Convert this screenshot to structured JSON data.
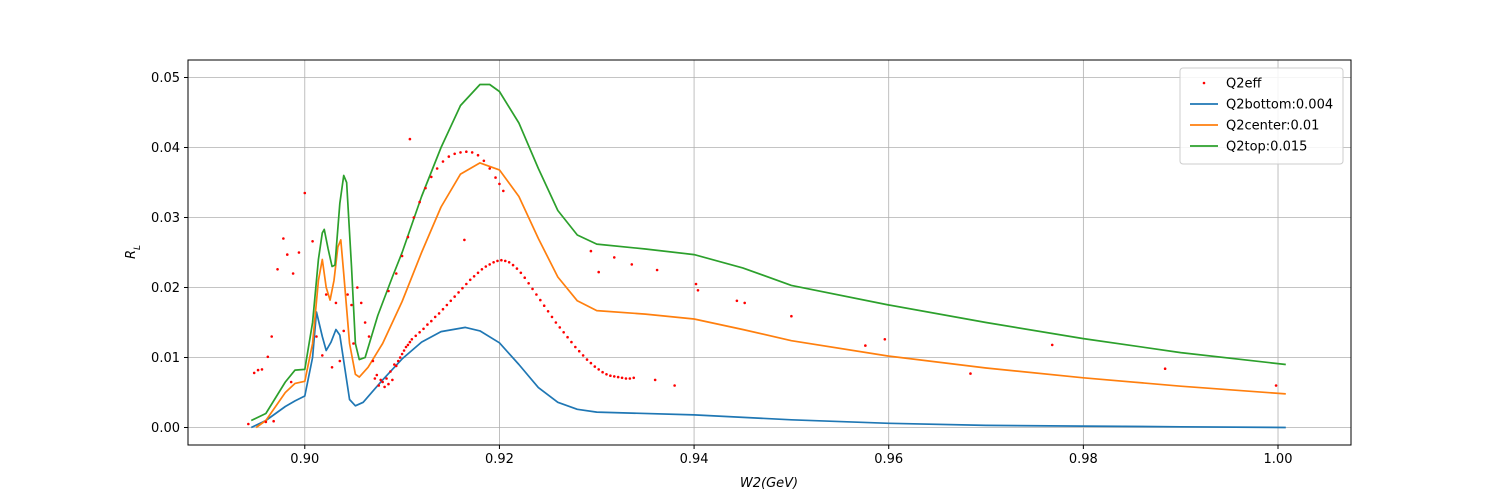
{
  "chart_data": {
    "type": "line",
    "title": "",
    "xlabel": "W2(GeV)",
    "ylabel": "R_L",
    "xlim": [
      0.888,
      1.0075
    ],
    "ylim": [
      -0.0025,
      0.0525
    ],
    "xticks": [
      0.9,
      0.92,
      0.94,
      0.96,
      0.98,
      1.0
    ],
    "xtick_labels": [
      "0.90",
      "0.92",
      "0.94",
      "0.96",
      "0.98",
      "1.00"
    ],
    "yticks": [
      0.0,
      0.01,
      0.02,
      0.03,
      0.04,
      0.05
    ],
    "ytick_labels": [
      "0.00",
      "0.01",
      "0.02",
      "0.03",
      "0.04",
      "0.05"
    ],
    "grid": true,
    "legend_position": "top-right",
    "series": [
      {
        "name": "Q2eff",
        "kind": "scatter",
        "color": "#ff0000",
        "points": [
          [
            0.8942,
            0.0005
          ],
          [
            0.8948,
            0.0078
          ],
          [
            0.8952,
            0.0082
          ],
          [
            0.8956,
            0.0083
          ],
          [
            0.896,
            0.0008
          ],
          [
            0.8962,
            0.0101
          ],
          [
            0.8966,
            0.013
          ],
          [
            0.8968,
            0.0009
          ],
          [
            0.8972,
            0.0226
          ],
          [
            0.8978,
            0.027
          ],
          [
            0.8982,
            0.0247
          ],
          [
            0.8986,
            0.0065
          ],
          [
            0.8988,
            0.022
          ],
          [
            0.8994,
            0.025
          ],
          [
            0.9,
            0.0335
          ],
          [
            0.9008,
            0.0266
          ],
          [
            0.9012,
            0.013
          ],
          [
            0.9018,
            0.0103
          ],
          [
            0.9022,
            0.019
          ],
          [
            0.9028,
            0.0086
          ],
          [
            0.9032,
            0.0178
          ],
          [
            0.9036,
            0.0095
          ],
          [
            0.904,
            0.0138
          ],
          [
            0.9044,
            0.019
          ],
          [
            0.9048,
            0.0175
          ],
          [
            0.905,
            0.012
          ],
          [
            0.9054,
            0.02
          ],
          [
            0.9058,
            0.0178
          ],
          [
            0.9062,
            0.015
          ],
          [
            0.9066,
            0.013
          ],
          [
            0.907,
            0.0095
          ],
          [
            0.9072,
            0.007
          ],
          [
            0.9074,
            0.0075
          ],
          [
            0.9076,
            0.006
          ],
          [
            0.9078,
            0.0068
          ],
          [
            0.908,
            0.0065
          ],
          [
            0.9082,
            0.0058
          ],
          [
            0.9084,
            0.007
          ],
          [
            0.9086,
            0.0062
          ],
          [
            0.9088,
            0.008
          ],
          [
            0.909,
            0.0068
          ],
          [
            0.9092,
            0.009
          ],
          [
            0.9094,
            0.0088
          ],
          [
            0.9096,
            0.0095
          ],
          [
            0.9098,
            0.01
          ],
          [
            0.91,
            0.0105
          ],
          [
            0.9102,
            0.011
          ],
          [
            0.9104,
            0.0115
          ],
          [
            0.9106,
            0.0118
          ],
          [
            0.9108,
            0.0122
          ],
          [
            0.911,
            0.0126
          ],
          [
            0.9114,
            0.0131
          ],
          [
            0.9118,
            0.0136
          ],
          [
            0.9122,
            0.0141
          ],
          [
            0.9126,
            0.0147
          ],
          [
            0.913,
            0.0152
          ],
          [
            0.9134,
            0.0158
          ],
          [
            0.9138,
            0.0163
          ],
          [
            0.9142,
            0.0169
          ],
          [
            0.9146,
            0.0175
          ],
          [
            0.915,
            0.0181
          ],
          [
            0.9154,
            0.0187
          ],
          [
            0.9158,
            0.0193
          ],
          [
            0.9162,
            0.0199
          ],
          [
            0.9166,
            0.0205
          ],
          [
            0.917,
            0.0211
          ],
          [
            0.9174,
            0.0216
          ],
          [
            0.9178,
            0.0221
          ],
          [
            0.9182,
            0.0226
          ],
          [
            0.9186,
            0.023
          ],
          [
            0.919,
            0.0233
          ],
          [
            0.9194,
            0.0236
          ],
          [
            0.9198,
            0.0238
          ],
          [
            0.9202,
            0.0239
          ],
          [
            0.9206,
            0.0238
          ],
          [
            0.921,
            0.0236
          ],
          [
            0.9214,
            0.0232
          ],
          [
            0.9218,
            0.0227
          ],
          [
            0.9222,
            0.0221
          ],
          [
            0.9226,
            0.0214
          ],
          [
            0.923,
            0.0206
          ],
          [
            0.9234,
            0.0198
          ],
          [
            0.9238,
            0.019
          ],
          [
            0.9242,
            0.0182
          ],
          [
            0.9246,
            0.0174
          ],
          [
            0.925,
            0.0166
          ],
          [
            0.9254,
            0.0158
          ],
          [
            0.9258,
            0.015
          ],
          [
            0.9262,
            0.0143
          ],
          [
            0.9266,
            0.0136
          ],
          [
            0.927,
            0.0129
          ],
          [
            0.9274,
            0.0122
          ],
          [
            0.9278,
            0.0115
          ],
          [
            0.9282,
            0.0109
          ],
          [
            0.9286,
            0.0103
          ],
          [
            0.929,
            0.0097
          ],
          [
            0.9294,
            0.0092
          ],
          [
            0.9298,
            0.0087
          ],
          [
            0.9302,
            0.0083
          ],
          [
            0.9306,
            0.0079
          ],
          [
            0.931,
            0.0076
          ],
          [
            0.9314,
            0.0074
          ],
          [
            0.9318,
            0.0073
          ],
          [
            0.9322,
            0.0072
          ],
          [
            0.9326,
            0.0071
          ],
          [
            0.933,
            0.007
          ],
          [
            0.9334,
            0.007
          ],
          [
            0.9338,
            0.0071
          ],
          [
            0.9086,
            0.0195
          ],
          [
            0.9094,
            0.022
          ],
          [
            0.91,
            0.0245
          ],
          [
            0.9106,
            0.0272
          ],
          [
            0.9112,
            0.03
          ],
          [
            0.9118,
            0.0322
          ],
          [
            0.9124,
            0.0342
          ],
          [
            0.913,
            0.0358
          ],
          [
            0.9136,
            0.037
          ],
          [
            0.9142,
            0.038
          ],
          [
            0.9148,
            0.0387
          ],
          [
            0.9154,
            0.0391
          ],
          [
            0.916,
            0.0393
          ],
          [
            0.9166,
            0.0394
          ],
          [
            0.9172,
            0.0393
          ],
          [
            0.9178,
            0.0389
          ],
          [
            0.9184,
            0.0381
          ],
          [
            0.919,
            0.037
          ],
          [
            0.9196,
            0.0357
          ],
          [
            0.92,
            0.0348
          ],
          [
            0.9204,
            0.0338
          ],
          [
            0.9108,
            0.0412
          ],
          [
            0.9164,
            0.0268
          ],
          [
            0.9294,
            0.0252
          ],
          [
            0.9302,
            0.0222
          ],
          [
            0.9318,
            0.0243
          ],
          [
            0.9336,
            0.0233
          ],
          [
            0.9362,
            0.0225
          ],
          [
            0.936,
            0.0068
          ],
          [
            0.938,
            0.006
          ],
          [
            0.9402,
            0.0205
          ],
          [
            0.9404,
            0.0196
          ],
          [
            0.9444,
            0.0181
          ],
          [
            0.9452,
            0.0178
          ],
          [
            0.95,
            0.0159
          ],
          [
            0.9576,
            0.0117
          ],
          [
            0.9596,
            0.0126
          ],
          [
            0.9684,
            0.0077
          ],
          [
            0.9768,
            0.0118
          ],
          [
            0.9884,
            0.0084
          ],
          [
            0.9998,
            0.006
          ]
        ]
      },
      {
        "name": "Q2bottom:0.004",
        "kind": "line",
        "color": "#1f77b4",
        "points": [
          [
            0.8945,
            0.0
          ],
          [
            0.896,
            0.001
          ],
          [
            0.898,
            0.003
          ],
          [
            0.899,
            0.0038
          ],
          [
            0.9,
            0.0045
          ],
          [
            0.9008,
            0.01
          ],
          [
            0.9012,
            0.0165
          ],
          [
            0.9018,
            0.013
          ],
          [
            0.9022,
            0.011
          ],
          [
            0.9027,
            0.0122
          ],
          [
            0.9032,
            0.014
          ],
          [
            0.9036,
            0.0132
          ],
          [
            0.904,
            0.0095
          ],
          [
            0.9046,
            0.004
          ],
          [
            0.9052,
            0.0031
          ],
          [
            0.906,
            0.0036
          ],
          [
            0.907,
            0.0052
          ],
          [
            0.908,
            0.0068
          ],
          [
            0.91,
            0.0098
          ],
          [
            0.912,
            0.0122
          ],
          [
            0.914,
            0.0137
          ],
          [
            0.9165,
            0.0143
          ],
          [
            0.918,
            0.0138
          ],
          [
            0.92,
            0.0121
          ],
          [
            0.922,
            0.009
          ],
          [
            0.924,
            0.0057
          ],
          [
            0.926,
            0.0036
          ],
          [
            0.928,
            0.0026
          ],
          [
            0.93,
            0.0022
          ],
          [
            0.94,
            0.0018
          ],
          [
            0.95,
            0.0011
          ],
          [
            0.96,
            0.0006
          ],
          [
            0.97,
            0.0003
          ],
          [
            0.98,
            0.0002
          ],
          [
            0.99,
            0.0001
          ],
          [
            1.0008,
            0.0
          ]
        ]
      },
      {
        "name": "Q2center:0.01",
        "kind": "line",
        "color": "#ff7f0e",
        "points": [
          [
            0.895,
            0.0
          ],
          [
            0.896,
            0.001
          ],
          [
            0.898,
            0.005
          ],
          [
            0.899,
            0.0063
          ],
          [
            0.9,
            0.0066
          ],
          [
            0.9008,
            0.012
          ],
          [
            0.9014,
            0.021
          ],
          [
            0.9018,
            0.024
          ],
          [
            0.9022,
            0.02
          ],
          [
            0.9026,
            0.0182
          ],
          [
            0.903,
            0.021
          ],
          [
            0.9034,
            0.0258
          ],
          [
            0.9037,
            0.0268
          ],
          [
            0.904,
            0.022
          ],
          [
            0.9046,
            0.012
          ],
          [
            0.9052,
            0.0076
          ],
          [
            0.9056,
            0.0072
          ],
          [
            0.9065,
            0.0086
          ],
          [
            0.908,
            0.012
          ],
          [
            0.91,
            0.018
          ],
          [
            0.912,
            0.025
          ],
          [
            0.914,
            0.0315
          ],
          [
            0.916,
            0.0362
          ],
          [
            0.918,
            0.0378
          ],
          [
            0.92,
            0.0368
          ],
          [
            0.922,
            0.033
          ],
          [
            0.924,
            0.027
          ],
          [
            0.926,
            0.0215
          ],
          [
            0.928,
            0.0181
          ],
          [
            0.93,
            0.0167
          ],
          [
            0.935,
            0.0162
          ],
          [
            0.94,
            0.0155
          ],
          [
            0.945,
            0.014
          ],
          [
            0.95,
            0.0124
          ],
          [
            0.96,
            0.0102
          ],
          [
            0.97,
            0.0085
          ],
          [
            0.98,
            0.0071
          ],
          [
            0.99,
            0.0059
          ],
          [
            1.0008,
            0.0048
          ]
        ]
      },
      {
        "name": "Q2top:0.015",
        "kind": "line",
        "color": "#2ca02c",
        "points": [
          [
            0.8945,
            0.001
          ],
          [
            0.896,
            0.002
          ],
          [
            0.898,
            0.0065
          ],
          [
            0.899,
            0.0082
          ],
          [
            0.9,
            0.0083
          ],
          [
            0.9008,
            0.015
          ],
          [
            0.9014,
            0.024
          ],
          [
            0.9018,
            0.0278
          ],
          [
            0.902,
            0.0283
          ],
          [
            0.9024,
            0.0255
          ],
          [
            0.9028,
            0.023
          ],
          [
            0.9031,
            0.0232
          ],
          [
            0.9036,
            0.032
          ],
          [
            0.904,
            0.036
          ],
          [
            0.9043,
            0.035
          ],
          [
            0.9048,
            0.023
          ],
          [
            0.9052,
            0.012
          ],
          [
            0.9056,
            0.0097
          ],
          [
            0.9062,
            0.01
          ],
          [
            0.9075,
            0.016
          ],
          [
            0.909,
            0.0215
          ],
          [
            0.91,
            0.025
          ],
          [
            0.912,
            0.033
          ],
          [
            0.914,
            0.04
          ],
          [
            0.916,
            0.046
          ],
          [
            0.918,
            0.049
          ],
          [
            0.919,
            0.049
          ],
          [
            0.92,
            0.048
          ],
          [
            0.922,
            0.0435
          ],
          [
            0.924,
            0.037
          ],
          [
            0.926,
            0.031
          ],
          [
            0.928,
            0.0275
          ],
          [
            0.93,
            0.0262
          ],
          [
            0.935,
            0.0255
          ],
          [
            0.94,
            0.0247
          ],
          [
            0.945,
            0.0228
          ],
          [
            0.95,
            0.0203
          ],
          [
            0.96,
            0.0175
          ],
          [
            0.97,
            0.015
          ],
          [
            0.98,
            0.0127
          ],
          [
            0.99,
            0.0107
          ],
          [
            1.0008,
            0.009
          ]
        ]
      }
    ]
  }
}
